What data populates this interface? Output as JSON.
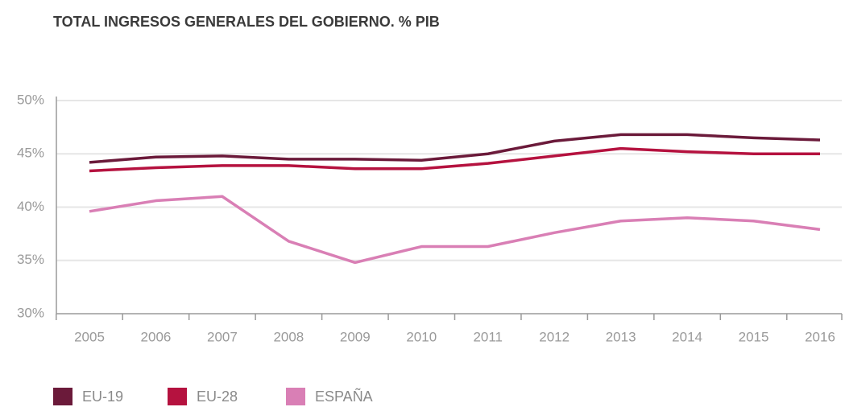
{
  "chart_data": {
    "type": "line",
    "title": "TOTAL INGRESOS GENERALES DEL GOBIERNO. % PIB",
    "categories": [
      "2005",
      "2006",
      "2007",
      "2008",
      "2009",
      "2010",
      "2011",
      "2012",
      "2013",
      "2014",
      "2015",
      "2016"
    ],
    "series": [
      {
        "name": "EU-19",
        "color": "#6b1a3a",
        "values": [
          44.2,
          44.7,
          44.8,
          44.5,
          44.5,
          44.4,
          45.0,
          46.2,
          46.8,
          46.8,
          46.5,
          46.3
        ]
      },
      {
        "name": "EU-28",
        "color": "#b5123f",
        "values": [
          43.4,
          43.7,
          43.9,
          43.9,
          43.6,
          43.6,
          44.1,
          44.8,
          45.5,
          45.2,
          45.0,
          45.0
        ]
      },
      {
        "name": "ESPAÑA",
        "color": "#d97fb5",
        "values": [
          39.6,
          40.6,
          41.0,
          36.8,
          34.8,
          36.3,
          36.3,
          37.6,
          38.7,
          39.0,
          38.7,
          37.9
        ]
      }
    ],
    "ylim": [
      30,
      50
    ],
    "yticks": [
      {
        "value": 30,
        "label": "30%"
      },
      {
        "value": 35,
        "label": "35%"
      },
      {
        "value": 40,
        "label": "40%"
      },
      {
        "value": 45,
        "label": "45%"
      },
      {
        "value": 50,
        "label": "50%"
      }
    ],
    "grid": true,
    "legend": "bottom"
  }
}
